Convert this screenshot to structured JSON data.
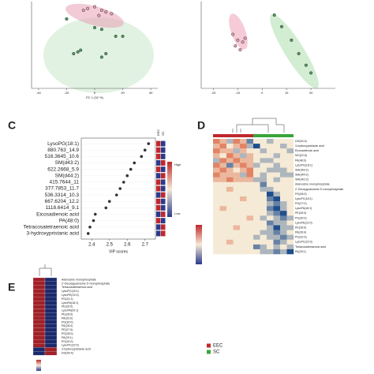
{
  "chart_data": [
    {
      "type": "scatter",
      "xlabel": "PC 1 (32 %)",
      "xlim": [
        -45,
        45
      ],
      "ylim": [
        -20,
        30
      ],
      "xticks": [
        -40,
        -20,
        0,
        20,
        40
      ],
      "series": [
        {
          "color": "#e8a0b4",
          "x": [
            -5,
            0,
            5,
            8,
            12,
            3,
            -8
          ],
          "y": [
            26,
            27,
            25,
            24,
            23,
            22,
            25
          ]
        },
        {
          "color": "#4f9a5e",
          "x": [
            0,
            5,
            15,
            20,
            -10,
            -15,
            -12,
            5,
            8,
            -20
          ],
          "y": [
            15,
            14,
            10,
            10,
            2,
            0,
            1,
            -2,
            0,
            20
          ]
        }
      ]
    },
    {
      "type": "scatter",
      "xlim": [
        -25,
        30
      ],
      "ylim": [
        -10,
        35
      ],
      "xticks": [
        -20,
        -10,
        0,
        10,
        20
      ],
      "series": [
        {
          "color": "#e8a0b4",
          "x": [
            -12,
            -10,
            -8,
            -11,
            -9,
            -7
          ],
          "y": [
            18,
            15,
            14,
            12,
            10,
            16
          ]
        },
        {
          "color": "#4f9a5e",
          "x": [
            5,
            8,
            12,
            15,
            18,
            20
          ],
          "y": [
            28,
            22,
            15,
            8,
            2,
            -2
          ]
        }
      ]
    },
    {
      "type": "dot",
      "panel": "C",
      "xlabel": "VIP scores",
      "xlim": [
        2.35,
        2.75
      ],
      "xticks": [
        2.4,
        2.5,
        2.6,
        2.7
      ],
      "categories": [
        "LysoPG(18:1)",
        "880.763_14.9",
        "516.3645_10.6",
        "SM(d43:2)",
        "622.2668_5.9",
        "SM(d44:2)",
        "415.7644_11",
        "377.7853_11.7",
        "536.3314_10.3",
        "667.6204_12.2",
        "1118.6414_9.1",
        "Eicosadienoic acid",
        "PA(48:0)",
        "Tetracosatetraenoic acid",
        "3-hydroxypristanic acid"
      ],
      "values": [
        2.72,
        2.7,
        2.68,
        2.64,
        2.62,
        2.6,
        2.58,
        2.56,
        2.54,
        2.5,
        2.48,
        2.42,
        2.41,
        2.39,
        2.38
      ],
      "column_labels": [
        "EEC",
        "SC"
      ],
      "levels": [
        [
          1,
          -1
        ],
        [
          1,
          -1
        ],
        [
          1,
          -1
        ],
        [
          -1,
          1
        ],
        [
          1,
          -1
        ],
        [
          -1,
          1
        ],
        [
          1,
          -1
        ],
        [
          1,
          -1
        ],
        [
          -1,
          1
        ],
        [
          1,
          -1
        ],
        [
          1,
          -1
        ],
        [
          -1,
          1
        ],
        [
          1,
          -1
        ],
        [
          -1,
          1
        ],
        [
          -1,
          1
        ]
      ],
      "scale_labels": [
        "High",
        "Low"
      ]
    },
    {
      "type": "heatmap",
      "panel": "D",
      "vlim": [
        -3,
        3
      ],
      "rows": [
        "DG(54:4)",
        "3-hydroxypristanic acid",
        "Eicosadienoic acid",
        "MG(22:6)",
        "PA(48:0)",
        "LysoPG(18:1)",
        "SM(d43:2)",
        "SM(d44:2)",
        "SM(d42:2)",
        "Adenosine monophosphate",
        "2'-Deoxyguanosine 5'-monophosphate",
        "PG(28:0)",
        "LysoPC(18:1)",
        "PG(27:0)",
        "LysoPA(18:1)",
        "PE(26:0)",
        "PG(30:0)",
        "LysoPE(22:0)",
        "PE(28:0)",
        "PA(28:4)",
        "PG(32:0)",
        "LysoPC(22:0)",
        "Tetracosatetraenoic acid",
        "PA(29:1)"
      ],
      "column_groups": [
        0,
        0,
        0,
        0,
        0,
        0,
        1,
        1,
        1,
        1,
        1,
        1
      ],
      "series": [
        {
          "name": "EEC",
          "color": "#c0282d"
        },
        {
          "name": "SC",
          "color": "#3aa53a"
        }
      ],
      "matrix": [
        [
          2,
          1,
          -1,
          2,
          1,
          -2,
          0,
          0,
          -1,
          0,
          0,
          0
        ],
        [
          1,
          2,
          0,
          1,
          2,
          -1,
          -3,
          0,
          0,
          0,
          -1,
          0
        ],
        [
          2,
          1,
          1,
          -1,
          1,
          0,
          0,
          -1,
          0,
          0,
          0,
          -1
        ],
        [
          1,
          0,
          2,
          1,
          -1,
          1,
          0,
          0,
          0,
          -1,
          0,
          0
        ],
        [
          -1,
          2,
          1,
          2,
          1,
          1,
          0,
          -1,
          -1,
          0,
          0,
          0
        ],
        [
          2,
          1,
          -2,
          1,
          2,
          1,
          -1,
          0,
          0,
          -1,
          0,
          0
        ],
        [
          1,
          2,
          1,
          0,
          1,
          2,
          0,
          0,
          -1,
          -1,
          -1,
          0
        ],
        [
          2,
          1,
          1,
          1,
          -1,
          2,
          0,
          -1,
          0,
          0,
          -1,
          -1
        ],
        [
          1,
          1,
          2,
          1,
          1,
          1,
          -1,
          -1,
          0,
          -1,
          0,
          0
        ],
        [
          0,
          0,
          0,
          0,
          0,
          0,
          0,
          -2,
          0,
          0,
          0,
          0
        ],
        [
          0,
          0,
          1,
          0,
          0,
          0,
          0,
          -1,
          -1,
          0,
          0,
          0
        ],
        [
          0,
          0,
          0,
          0,
          0,
          0,
          0,
          0,
          -3,
          -1,
          0,
          0
        ],
        [
          0,
          0,
          0,
          0,
          1,
          0,
          0,
          0,
          -2,
          -3,
          0,
          0
        ],
        [
          0,
          0,
          0,
          0,
          0,
          0,
          0,
          0,
          -1,
          -2,
          -1,
          0
        ],
        [
          0,
          1,
          0,
          0,
          0,
          0,
          0,
          0,
          -2,
          -3,
          -1,
          0
        ],
        [
          0,
          0,
          0,
          0,
          0,
          0,
          0,
          0,
          -1,
          -2,
          -3,
          0
        ],
        [
          0,
          0,
          0,
          0,
          0,
          1,
          0,
          -1,
          0,
          -1,
          -2,
          -1
        ],
        [
          0,
          0,
          0,
          0,
          0,
          0,
          0,
          0,
          -2,
          -1,
          -1,
          0
        ],
        [
          0,
          0,
          0,
          1,
          0,
          0,
          0,
          0,
          -1,
          -3,
          -1,
          -1
        ],
        [
          0,
          0,
          0,
          0,
          0,
          0,
          0,
          -1,
          -1,
          -2,
          -1,
          0
        ],
        [
          0,
          0,
          0,
          0,
          0,
          0,
          -1,
          0,
          -1,
          -1,
          -2,
          -1
        ],
        [
          0,
          0,
          1,
          0,
          0,
          0,
          0,
          0,
          0,
          -2,
          -1,
          0
        ],
        [
          0,
          0,
          0,
          0,
          0,
          0,
          -2,
          -1,
          0,
          -1,
          0,
          -1
        ],
        [
          0,
          0,
          0,
          0,
          0,
          0,
          0,
          -1,
          -1,
          -2,
          -1,
          -3
        ]
      ]
    },
    {
      "type": "heatmap2",
      "panel": "E",
      "vlim": [
        -1,
        1
      ],
      "rows": [
        "Adenosine monophosphate",
        "2'-Deoxyguanosine 5'-monophosphate",
        "Tetracosatetraenoic acid",
        "LysoPC(18:1)",
        "LysoPE(22:0)",
        "PG(22:1)",
        "LysoPA(18:1)",
        "PE(26:0)",
        "LysoPA(20:1)",
        "PE(28:0)",
        "PA(30:0)",
        "PG(30:0)",
        "PA(28:4)",
        "PE(27:0)",
        "PG(28:0)",
        "PA(29:1)",
        "PG(32:0)",
        "LysoPC(22:0)",
        "3-hydroxypristanic acid",
        "DG(54:4)"
      ],
      "matrix": [
        [
          1,
          -1
        ],
        [
          1,
          -1
        ],
        [
          1,
          -1
        ],
        [
          1,
          -1
        ],
        [
          1,
          -1
        ],
        [
          1,
          -1
        ],
        [
          1,
          -1
        ],
        [
          1,
          -1
        ],
        [
          1,
          -1
        ],
        [
          1,
          -1
        ],
        [
          1,
          -1
        ],
        [
          1,
          -1
        ],
        [
          1,
          -1
        ],
        [
          1,
          -1
        ],
        [
          1,
          -1
        ],
        [
          1,
          -1
        ],
        [
          1,
          -1
        ],
        [
          1,
          -1
        ],
        [
          -1,
          1
        ],
        [
          -1,
          1
        ]
      ]
    }
  ]
}
